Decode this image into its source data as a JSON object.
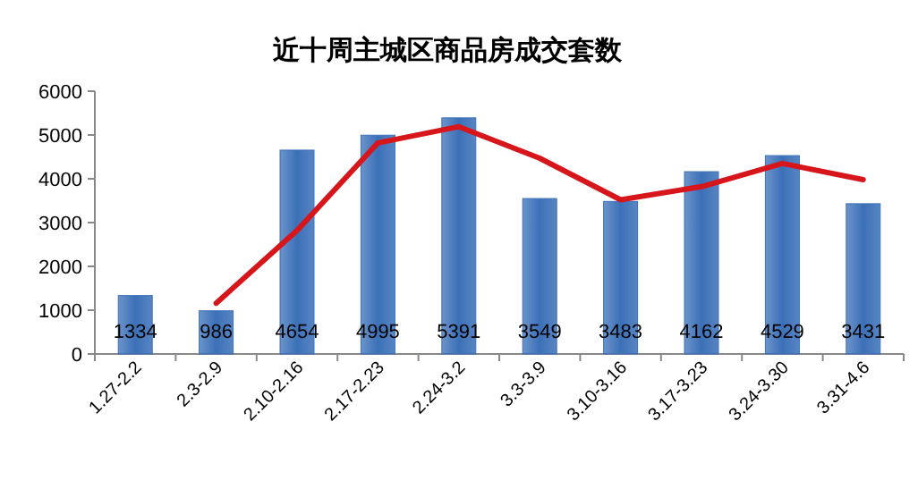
{
  "chart_data": {
    "type": "bar",
    "title": "近十周主城区商品房成交套数",
    "categories": [
      "1.27-2.2",
      "2.3-2.9",
      "2.10-2.16",
      "2.17-2.23",
      "2.24-3.2",
      "3.3-3.9",
      "3.10-3.16",
      "3.17-3.23",
      "3.24-3.30",
      "3.31-4.6"
    ],
    "series": [
      {
        "color": "#3b70b8",
        "values": [
          1334,
          986,
          4654,
          4995,
          5391,
          3549,
          3483,
          4162,
          4529,
          3431
        ],
        "value_labels": [
          "1334",
          "986",
          "4654",
          "4995",
          "5391",
          "3549",
          "3483",
          "4162",
          "4529",
          "3431"
        ]
      },
      {
        "type": "line",
        "color": "#d7161c",
        "values": [
          null,
          1160,
          2820,
          4820,
          5190,
          4470,
          3520,
          3820,
          4350,
          3980
        ]
      }
    ],
    "ylim": [
      0,
      6000
    ],
    "yticks": [
      0,
      1000,
      2000,
      3000,
      4000,
      5000,
      6000
    ],
    "grid": false,
    "marker": "none",
    "line_style": "solid"
  }
}
